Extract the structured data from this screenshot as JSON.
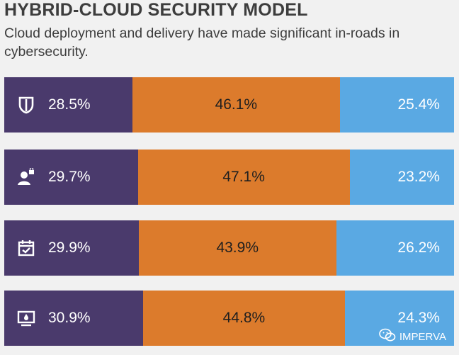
{
  "chart_data": {
    "type": "bar",
    "title": "HYBRID-CLOUD SECURITY MODEL",
    "subtitle": "Cloud deployment and delivery have made significant in-roads in cybersecurity.",
    "stacked": true,
    "orientation": "horizontal",
    "categories": [
      "shield",
      "user-lock",
      "calendar-check",
      "monitor-drop"
    ],
    "series": [
      {
        "name": "purple",
        "color": "#4a3a6c",
        "values": [
          28.5,
          29.7,
          29.9,
          30.9
        ]
      },
      {
        "name": "orange",
        "color": "#dc7b2c",
        "values": [
          46.1,
          47.1,
          43.9,
          44.8
        ]
      },
      {
        "name": "blue",
        "color": "#5aa9e3",
        "values": [
          25.4,
          23.2,
          26.2,
          24.3
        ]
      }
    ],
    "labels": [
      [
        "28.5%",
        "46.1%",
        "25.4%"
      ],
      [
        "29.7%",
        "47.1%",
        "23.2%"
      ],
      [
        "29.9%",
        "43.9%",
        "26.2%"
      ],
      [
        "30.9%",
        "44.8%",
        "24.3%"
      ]
    ]
  },
  "watermark": {
    "text": "IMPERVA",
    "icon": "wechat-icon"
  }
}
